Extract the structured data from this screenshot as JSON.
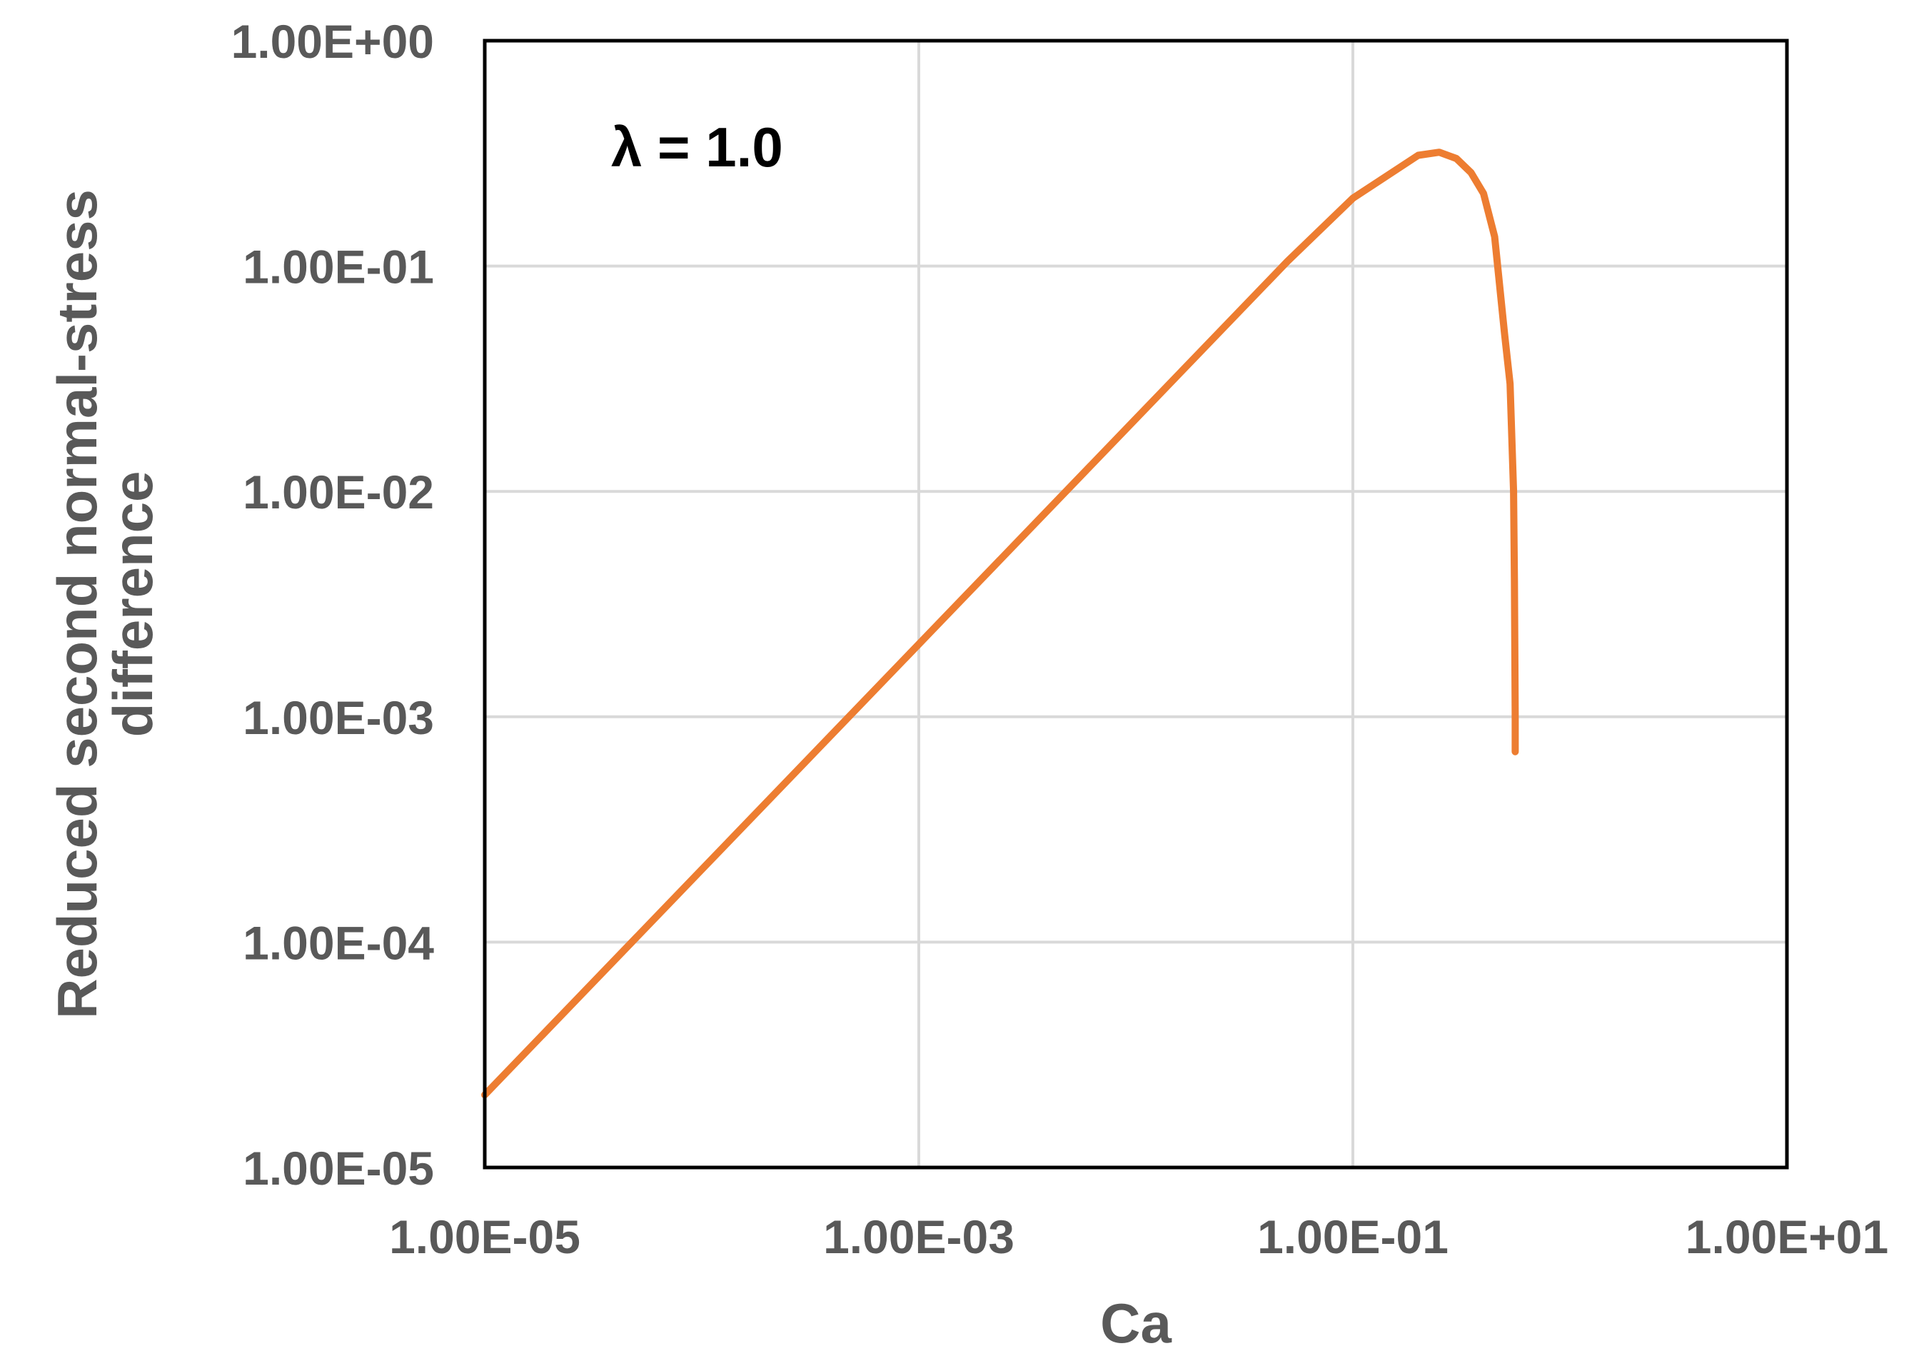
{
  "chart_data": {
    "type": "line",
    "title": "",
    "xlabel": "Ca",
    "ylabel_lines": [
      "Reduced second normal-stress",
      "difference"
    ],
    "x_scale": "log",
    "y_scale": "log",
    "xlim": [
      1e-05,
      10
    ],
    "ylim": [
      1e-05,
      1
    ],
    "x_ticks": [
      1e-05,
      0.001,
      0.1,
      10
    ],
    "x_tick_labels": [
      "1.00E-05",
      "1.00E-03",
      "1.00E-01",
      "1.00E+01"
    ],
    "y_ticks": [
      1e-05,
      0.0001,
      0.001,
      0.01,
      0.1,
      1
    ],
    "y_tick_labels": [
      "1.00E-05",
      "1.00E-04",
      "1.00E-03",
      "1.00E-02",
      "1.00E-01",
      "1.00E+00"
    ],
    "grid": true,
    "legend": "none",
    "annotation": "λ = 1.0",
    "series_color": "#ed7d31",
    "series": [
      {
        "x": [
          1e-05,
          0.0001,
          0.001,
          0.01,
          0.05,
          0.1,
          0.2,
          0.25,
          0.3,
          0.35,
          0.4,
          0.45,
          0.5,
          0.53,
          0.55,
          0.555,
          0.56,
          0.56
        ],
        "y": [
          2.1e-05,
          0.00021,
          0.0021,
          0.021,
          0.105,
          0.2,
          0.31,
          0.32,
          0.3,
          0.26,
          0.21,
          0.135,
          0.05,
          0.03,
          0.01,
          0.004,
          0.001,
          0.0007
        ]
      }
    ]
  }
}
